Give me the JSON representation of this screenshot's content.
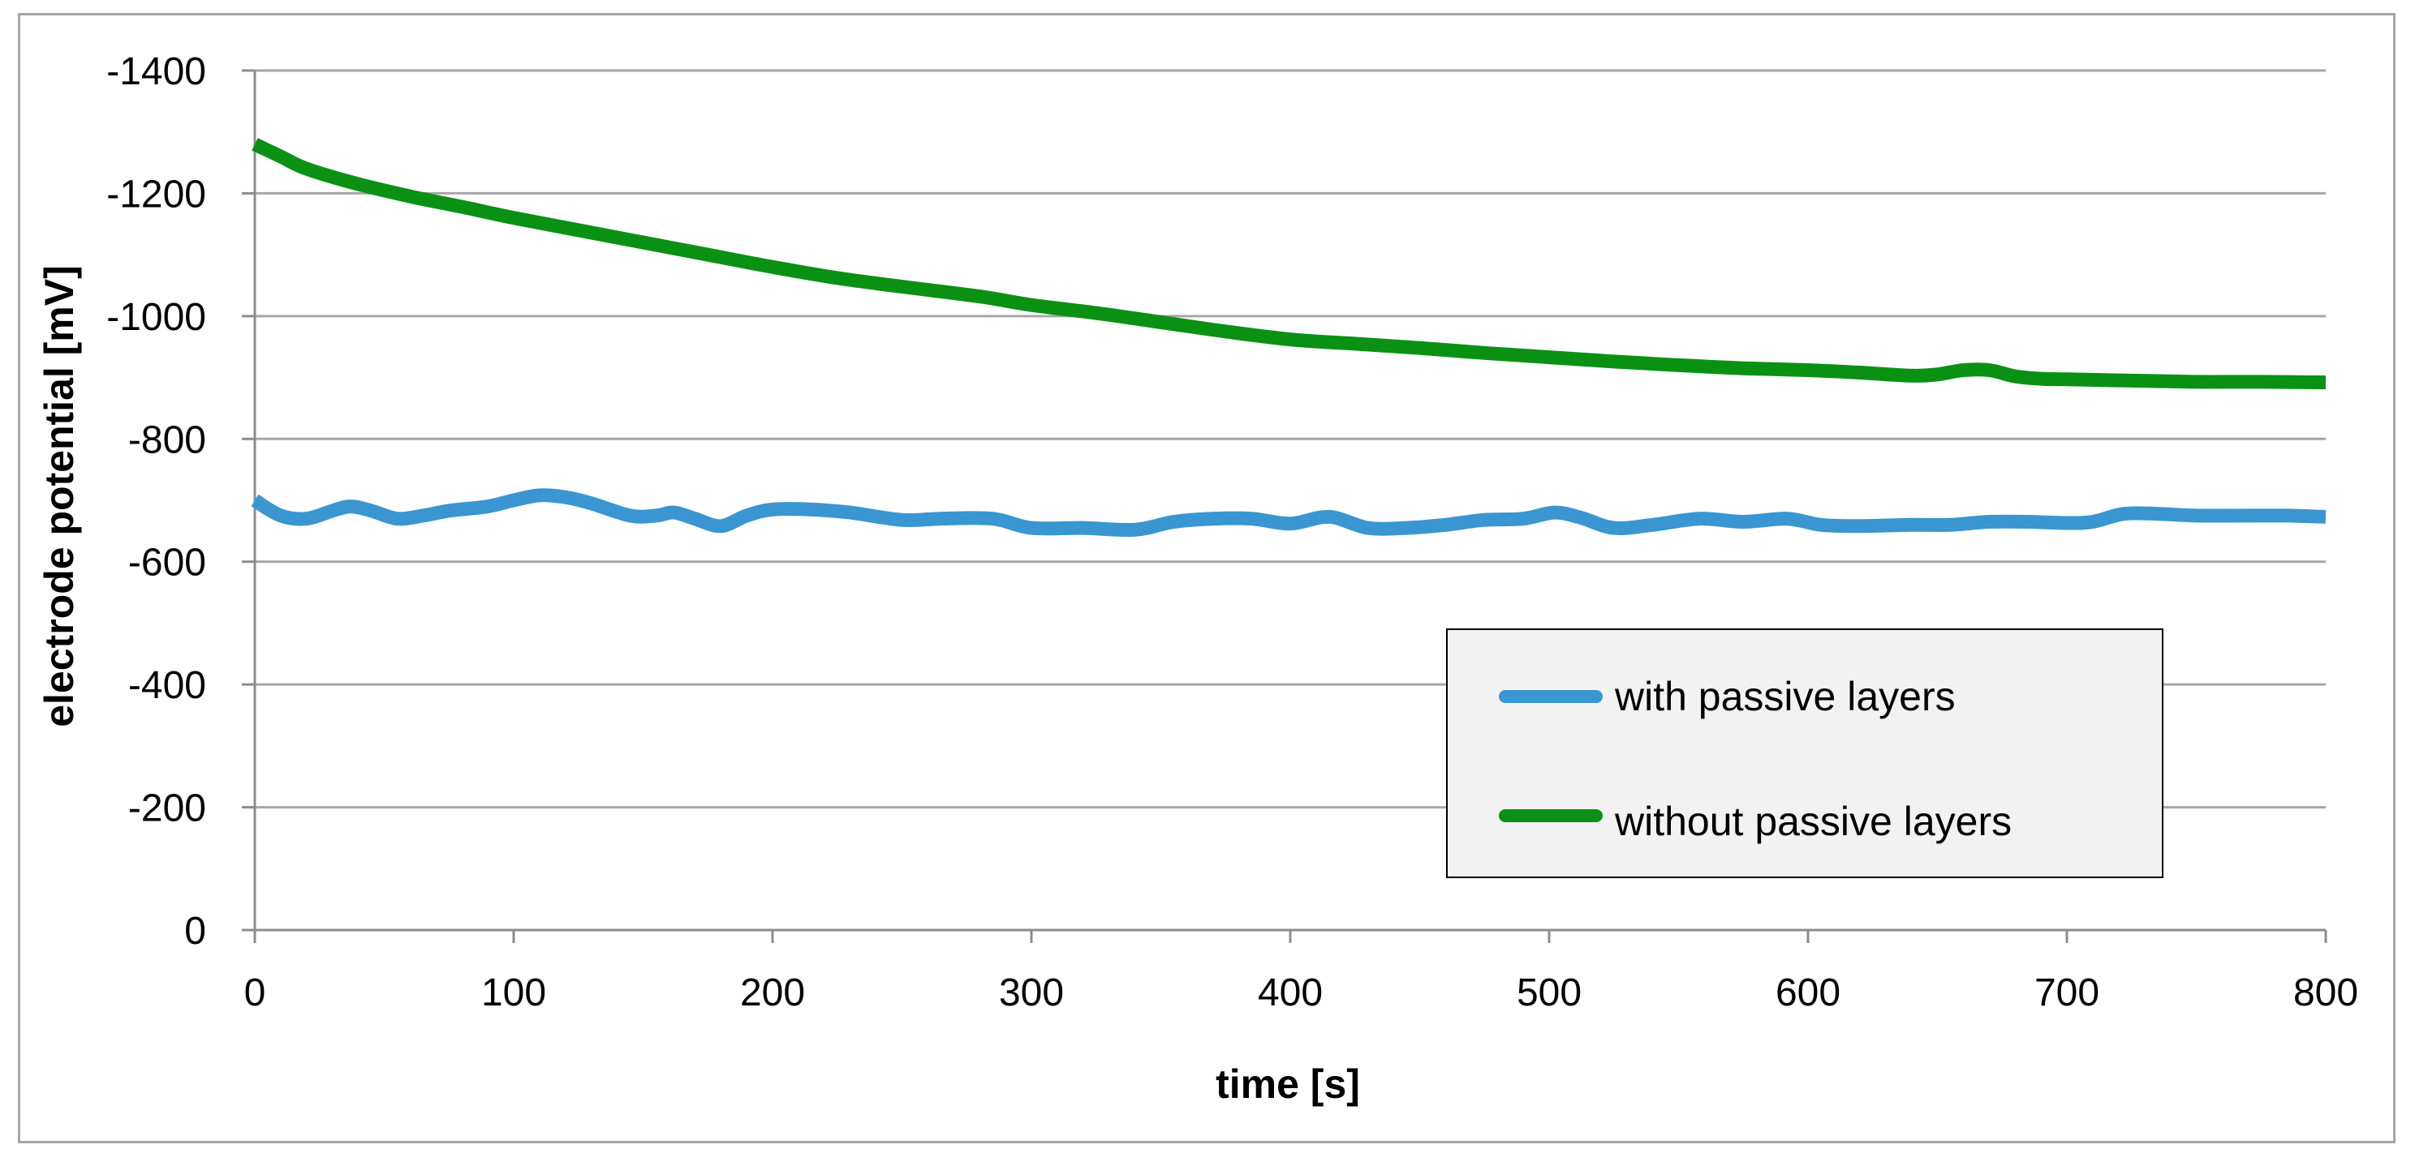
{
  "chart_data": {
    "type": "line",
    "title": "",
    "xlabel": "time [s]",
    "ylabel": "electrode potential [mV]",
    "xlim": [
      0,
      800
    ],
    "ylim": [
      0,
      -1400
    ],
    "x_ticks": [
      0,
      100,
      200,
      300,
      400,
      500,
      600,
      700,
      800
    ],
    "y_ticks": [
      0,
      -200,
      -400,
      -600,
      -800,
      -1000,
      -1200,
      -1400
    ],
    "x_tick_labels": [
      "0",
      "100",
      "200",
      "300",
      "400",
      "500",
      "600",
      "700",
      "800"
    ],
    "y_tick_labels": [
      "0",
      "-200",
      "-400",
      "-600",
      "-800",
      "-1000",
      "-1200",
      "-1400"
    ],
    "grid": true,
    "legend_position": "lower-right",
    "series": [
      {
        "name": "with passive layers",
        "color": "#3a96d0",
        "x": [
          0,
          10,
          20,
          30,
          37,
          45,
          55,
          65,
          75,
          90,
          100,
          110,
          120,
          130,
          145,
          155,
          162,
          170,
          180,
          190,
          200,
          215,
          230,
          250,
          265,
          285,
          300,
          320,
          340,
          355,
          370,
          385,
          400,
          415,
          430,
          445,
          460,
          475,
          490,
          502,
          512,
          525,
          540,
          558,
          575,
          592,
          605,
          620,
          640,
          655,
          670,
          685,
          700,
          710,
          722,
          735,
          750,
          770,
          785,
          800
        ],
        "y": [
          -700,
          -675,
          -670,
          -683,
          -690,
          -683,
          -670,
          -675,
          -683,
          -690,
          -700,
          -708,
          -705,
          -695,
          -675,
          -675,
          -680,
          -670,
          -658,
          -675,
          -685,
          -685,
          -680,
          -668,
          -670,
          -670,
          -655,
          -655,
          -652,
          -665,
          -670,
          -670,
          -662,
          -673,
          -655,
          -655,
          -660,
          -668,
          -670,
          -680,
          -672,
          -655,
          -660,
          -670,
          -665,
          -670,
          -660,
          -658,
          -660,
          -660,
          -665,
          -665,
          -663,
          -665,
          -678,
          -678,
          -675,
          -675,
          -675,
          -673
        ]
      },
      {
        "name": "without passive layers",
        "color": "#0a9114",
        "x": [
          0,
          10,
          20,
          40,
          60,
          80,
          100,
          125,
          150,
          175,
          200,
          225,
          250,
          280,
          300,
          325,
          350,
          375,
          400,
          425,
          450,
          475,
          500,
          525,
          550,
          575,
          600,
          620,
          640,
          650,
          660,
          670,
          680,
          690,
          700,
          725,
          750,
          775,
          800
        ],
        "y": [
          -1280,
          -1260,
          -1240,
          -1215,
          -1195,
          -1178,
          -1160,
          -1140,
          -1120,
          -1100,
          -1080,
          -1062,
          -1048,
          -1032,
          -1018,
          -1005,
          -990,
          -975,
          -962,
          -955,
          -948,
          -940,
          -933,
          -926,
          -920,
          -915,
          -912,
          -908,
          -903,
          -905,
          -912,
          -912,
          -902,
          -898,
          -897,
          -895,
          -893,
          -893,
          -892
        ]
      }
    ]
  }
}
